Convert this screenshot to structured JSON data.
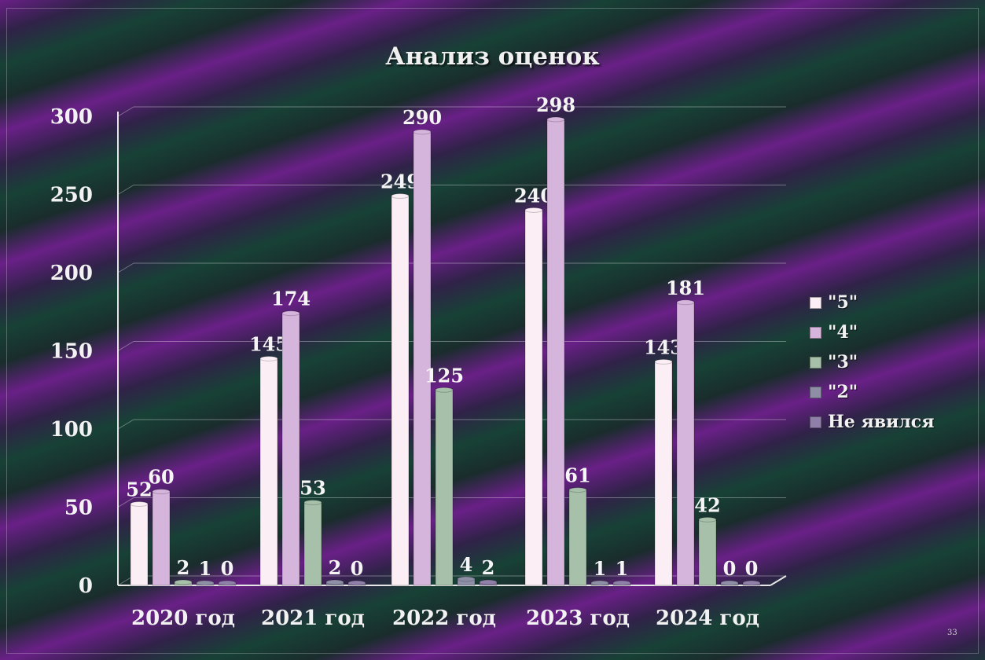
{
  "slide": {
    "page_number": "33"
  },
  "chart_data": {
    "type": "bar",
    "title": "Анализ оценок",
    "categories": [
      "2020 год",
      "2021 год",
      "2022 год",
      "2023 год",
      "2024 год"
    ],
    "yticks": [
      "0",
      "50",
      "100",
      "150",
      "200",
      "250",
      "300"
    ],
    "ylim": [
      0,
      300
    ],
    "grid": true,
    "legend_position": "right",
    "series": [
      {
        "name": "\"5\"",
        "values": [
          52,
          145,
          249,
          240,
          143
        ],
        "color": "#fbeef4"
      },
      {
        "name": "\"4\"",
        "values": [
          60,
          174,
          290,
          298,
          181
        ],
        "color": "#d6b5dc"
      },
      {
        "name": "\"3\"",
        "values": [
          2,
          53,
          125,
          61,
          42
        ],
        "color": "#a6c0aa"
      },
      {
        "name": "\"2\"",
        "values": [
          1,
          2,
          4,
          1,
          0
        ],
        "color": "#8e8fa6"
      },
      {
        "name": "Не явился",
        "values": [
          0,
          0,
          2,
          1,
          0
        ],
        "color": "#8f7fa9"
      }
    ]
  }
}
